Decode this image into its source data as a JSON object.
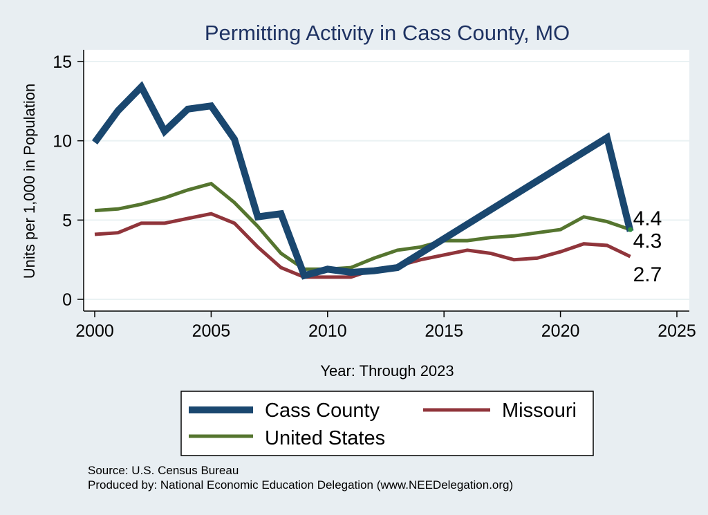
{
  "chart_data": {
    "type": "line",
    "title": "Permitting Activity in Cass County, MO",
    "xlabel": "Year: Through 2023",
    "ylabel": "Units per 1,000 in Population",
    "xlim": [
      2000,
      2025
    ],
    "ylim": [
      0,
      15
    ],
    "x_ticks": [
      2000,
      2005,
      2010,
      2015,
      2020,
      2025
    ],
    "y_ticks": [
      0,
      5,
      10,
      15
    ],
    "grid": "horizontal",
    "legend": "bottom",
    "series": [
      {
        "name": "Cass County",
        "color": "#1a476f",
        "x": [
          2000,
          2001,
          2002,
          2003,
          2004,
          2005,
          2006,
          2007,
          2008,
          2009,
          2010,
          2011,
          2012,
          2013,
          2022,
          2023
        ],
        "values": [
          9.9,
          11.9,
          13.4,
          10.6,
          12.0,
          12.2,
          10.1,
          5.2,
          5.4,
          1.5,
          1.9,
          1.7,
          1.8,
          2.0,
          10.2,
          4.3
        ],
        "end_label": "4.3"
      },
      {
        "name": "Missouri",
        "color": "#90353b",
        "x": [
          2000,
          2001,
          2002,
          2003,
          2004,
          2005,
          2006,
          2007,
          2008,
          2009,
          2010,
          2011,
          2012,
          2013,
          2014,
          2015,
          2016,
          2017,
          2018,
          2019,
          2020,
          2021,
          2022,
          2023
        ],
        "values": [
          4.1,
          4.2,
          4.8,
          4.8,
          5.1,
          5.4,
          4.8,
          3.3,
          2.0,
          1.4,
          1.4,
          1.4,
          1.9,
          2.1,
          2.5,
          2.8,
          3.1,
          2.9,
          2.5,
          2.6,
          3.0,
          3.5,
          3.4,
          2.7
        ],
        "end_label": "2.7"
      },
      {
        "name": "United States",
        "color": "#55752f",
        "x": [
          2000,
          2001,
          2002,
          2003,
          2004,
          2005,
          2006,
          2007,
          2008,
          2009,
          2010,
          2011,
          2012,
          2013,
          2014,
          2015,
          2016,
          2017,
          2018,
          2019,
          2020,
          2021,
          2022,
          2023
        ],
        "values": [
          5.6,
          5.7,
          6.0,
          6.4,
          6.9,
          7.3,
          6.1,
          4.6,
          2.9,
          1.9,
          1.9,
          2.0,
          2.6,
          3.1,
          3.3,
          3.7,
          3.7,
          3.9,
          4.0,
          4.2,
          4.4,
          5.2,
          4.9,
          4.4
        ],
        "end_label": "4.4"
      }
    ]
  },
  "source": {
    "line1": "Source: U.S. Census Bureau",
    "line2": "Produced by: National Economic Education Delegation (www.NEEDelegation.org)"
  }
}
